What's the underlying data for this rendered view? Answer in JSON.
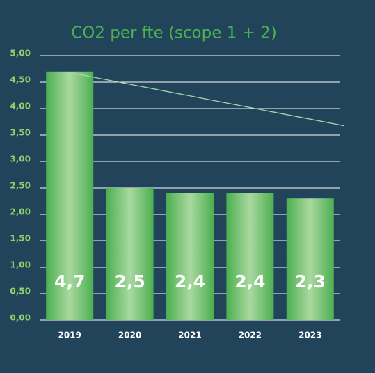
{
  "chart_data": {
    "type": "bar",
    "title": "CO2 per fte (scope 1 + 2)",
    "categories": [
      "2019",
      "2020",
      "2021",
      "2022",
      "2023"
    ],
    "values": [
      4.7,
      2.5,
      2.4,
      2.4,
      2.3
    ],
    "value_labels": [
      "4,7",
      "2,5",
      "2,4",
      "2,4",
      "2,3"
    ],
    "color": "#4caf50",
    "trend": {
      "values": [
        4.68,
        4.46,
        4.24,
        4.02,
        3.8
      ],
      "color": "#a5d6a7"
    },
    "ylim": [
      0,
      5
    ],
    "yticks": [
      {
        "value": 0,
        "label": "0,00"
      },
      {
        "value": 0.5,
        "label": "0,50"
      },
      {
        "value": 1,
        "label": "1,00"
      },
      {
        "value": 1.5,
        "label": "1,50"
      },
      {
        "value": 2,
        "label": "2,00"
      },
      {
        "value": 2.5,
        "label": "2,50"
      },
      {
        "value": 3,
        "label": "3,00"
      },
      {
        "value": 3.5,
        "label": "3,50"
      },
      {
        "value": 4,
        "label": "4,00"
      },
      {
        "value": 4.5,
        "label": "4,50"
      },
      {
        "value": 5,
        "label": "5,00"
      }
    ],
    "grid": true
  }
}
